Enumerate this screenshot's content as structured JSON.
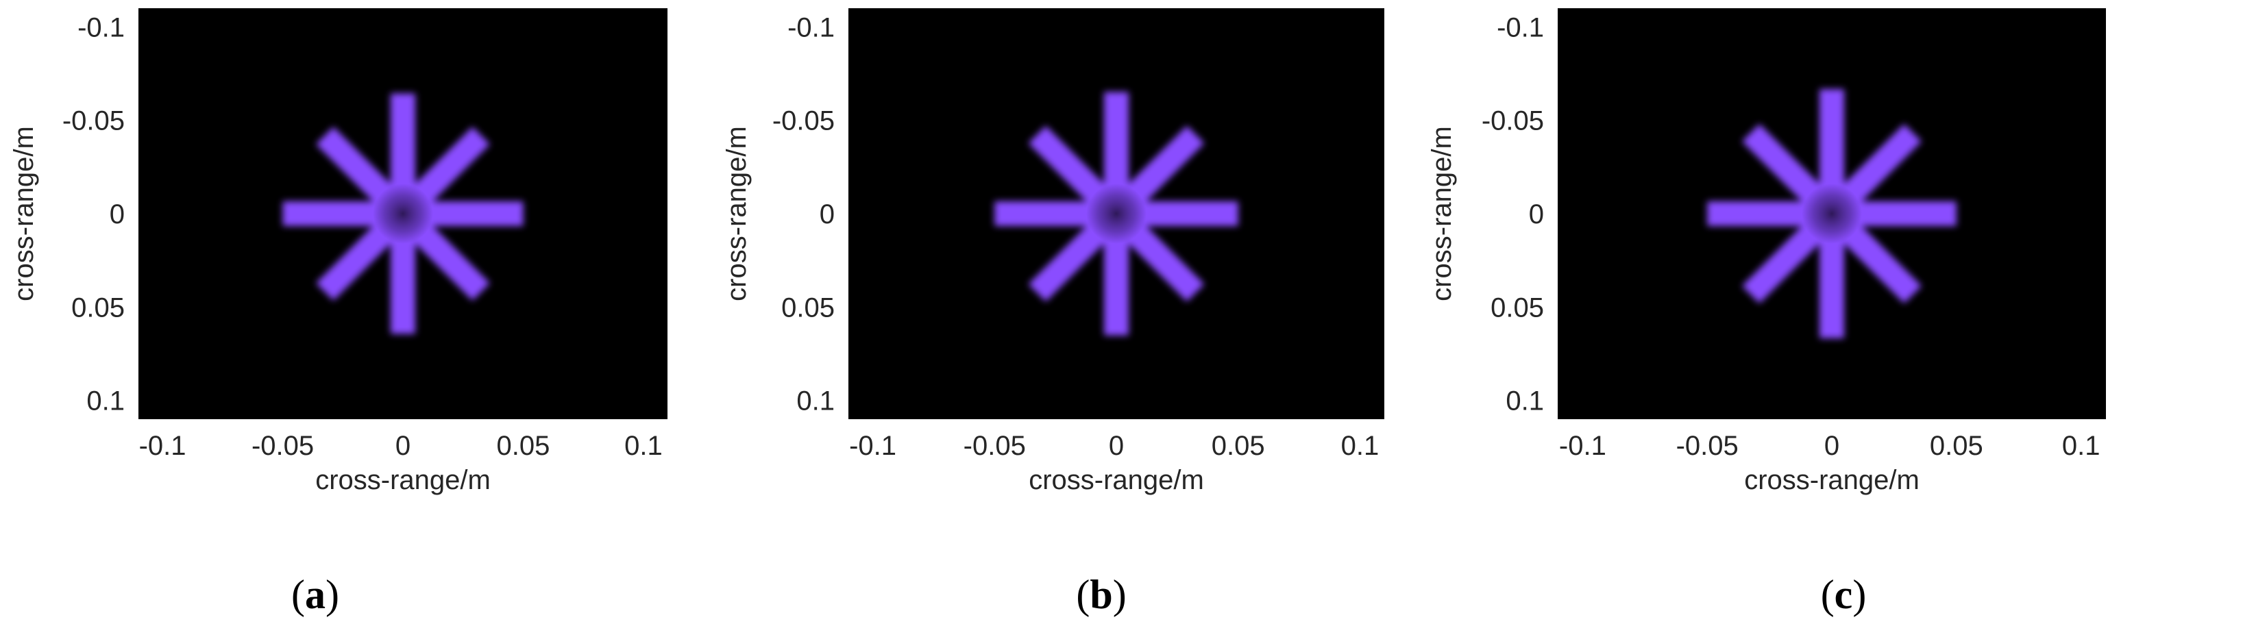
{
  "chart_data": [
    {
      "type": "heatmap",
      "panel_label": "(a)",
      "panel_letter": "a",
      "xlabel": "cross-range/m",
      "ylabel": "cross-range/m",
      "xlim": [
        -0.11,
        0.11
      ],
      "ylim": [
        -0.11,
        0.11
      ],
      "y_reversed": true,
      "xticks": [
        -0.1,
        -0.05,
        0,
        0.05,
        0.1
      ],
      "xtick_labels": [
        "-0.1",
        "-0.05",
        "0",
        "0.05",
        "0.1"
      ],
      "yticks": [
        -0.1,
        -0.05,
        0,
        0.05,
        0.1
      ],
      "ytick_labels": [
        "-0.1",
        "-0.05",
        "0",
        "0.05",
        "0.1"
      ],
      "target": {
        "shape": "8-arm star",
        "center": [
          0,
          0
        ],
        "arm_length": 0.05,
        "arm_angles_deg": [
          0,
          45,
          90,
          135,
          180,
          225,
          270,
          315
        ]
      }
    },
    {
      "type": "heatmap",
      "panel_label": "(b)",
      "panel_letter": "b",
      "xlabel": "cross-range/m",
      "ylabel": "cross-range/m",
      "xlim": [
        -0.11,
        0.11
      ],
      "ylim": [
        -0.11,
        0.11
      ],
      "y_reversed": true,
      "xticks": [
        -0.1,
        -0.05,
        0,
        0.05,
        0.1
      ],
      "xtick_labels": [
        "-0.1",
        "-0.05",
        "0",
        "0.05",
        "0.1"
      ],
      "yticks": [
        -0.1,
        -0.05,
        0,
        0.05,
        0.1
      ],
      "ytick_labels": [
        "-0.1",
        "-0.05",
        "0",
        "0.05",
        "0.1"
      ],
      "target": {
        "shape": "8-arm star",
        "center": [
          0,
          0
        ],
        "arm_length": 0.05,
        "arm_angles_deg": [
          0,
          45,
          90,
          135,
          180,
          225,
          270,
          315
        ]
      }
    },
    {
      "type": "heatmap",
      "panel_label": "(c)",
      "panel_letter": "c",
      "xlabel": "cross-range/m",
      "ylabel": "cross-range/m",
      "xlim": [
        -0.11,
        0.11
      ],
      "ylim": [
        -0.11,
        0.11
      ],
      "y_reversed": true,
      "xticks": [
        -0.1,
        -0.05,
        0,
        0.05,
        0.1
      ],
      "xtick_labels": [
        "-0.1",
        "-0.05",
        "0",
        "0.05",
        "0.1"
      ],
      "yticks": [
        -0.1,
        -0.05,
        0,
        0.05,
        0.1
      ],
      "ytick_labels": [
        "-0.1",
        "-0.05",
        "0",
        "0.05",
        "0.1"
      ],
      "target": {
        "shape": "8-arm star",
        "center": [
          0,
          0
        ],
        "arm_length": 0.05,
        "arm_angles_deg": [
          0,
          45,
          90,
          135,
          180,
          225,
          270,
          315
        ]
      }
    }
  ],
  "colors": {
    "background": "#000000",
    "target": "#8a4dff",
    "target_center": "#3a2070",
    "text": "#262626"
  }
}
